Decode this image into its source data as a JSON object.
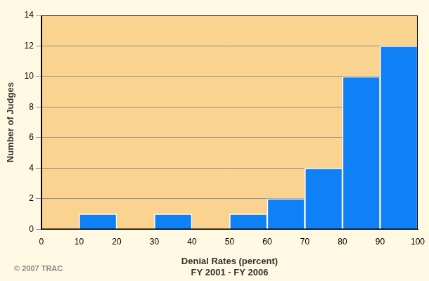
{
  "chart_data": {
    "type": "histogram",
    "bins": [
      0,
      10,
      20,
      30,
      40,
      50,
      60,
      70,
      80,
      90,
      100
    ],
    "values": [
      0,
      1,
      0,
      1,
      0,
      1,
      2,
      4,
      10,
      12
    ],
    "color": "#0f80f5",
    "x_label": [
      "Denial Rates (percent)",
      "FY 2001 - FY 2006"
    ],
    "y_label": "Number of Judges",
    "annotations": [
      "© 2007 TRAC"
    ],
    "xlim": [
      0,
      100
    ],
    "xticks": [
      0,
      10,
      20,
      30,
      40,
      50,
      60,
      70,
      80,
      90,
      100
    ],
    "ylim": [
      0,
      14
    ],
    "yticks": [
      0,
      2,
      4,
      6,
      8,
      10,
      12,
      14
    ],
    "grid": true
  }
}
